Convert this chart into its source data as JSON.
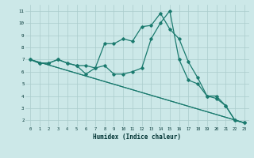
{
  "xlabel": "Humidex (Indice chaleur)",
  "bg_color": "#cce8e8",
  "grid_color": "#aacccc",
  "line_color": "#1a7a6e",
  "x_ticks": [
    0,
    1,
    2,
    3,
    4,
    5,
    6,
    7,
    8,
    9,
    10,
    11,
    12,
    13,
    14,
    15,
    16,
    17,
    18,
    19,
    20,
    21,
    22,
    23
  ],
  "ylim": [
    1.5,
    11.5
  ],
  "xlim": [
    -0.5,
    23.5
  ],
  "series": [
    {
      "x": [
        0,
        1,
        2,
        3,
        4,
        5,
        6,
        7,
        8,
        9,
        10,
        11,
        12,
        13,
        14,
        15,
        16,
        17,
        18,
        19,
        20,
        21,
        22,
        23
      ],
      "y": [
        7.0,
        6.7,
        6.7,
        7.0,
        6.7,
        6.5,
        5.8,
        6.3,
        6.5,
        5.8,
        5.8,
        6.0,
        6.3,
        8.7,
        10.0,
        11.0,
        7.0,
        5.3,
        5.0,
        4.0,
        4.0,
        3.2,
        2.0,
        1.8
      ],
      "marker": "D",
      "markersize": 1.8,
      "linewidth": 0.9
    },
    {
      "x": [
        0,
        1,
        2,
        3,
        4,
        5,
        6,
        7,
        8,
        9,
        10,
        11,
        12,
        13,
        14,
        15,
        16,
        17,
        18,
        19,
        20,
        21,
        22,
        23
      ],
      "y": [
        7.0,
        6.7,
        6.7,
        7.0,
        6.7,
        6.5,
        6.5,
        6.3,
        8.3,
        8.3,
        8.7,
        8.5,
        9.7,
        9.8,
        10.8,
        9.5,
        8.7,
        6.8,
        5.5,
        4.0,
        3.8,
        3.2,
        2.0,
        1.8
      ],
      "marker": "D",
      "markersize": 1.8,
      "linewidth": 0.9
    },
    {
      "x": [
        0,
        23
      ],
      "y": [
        7.0,
        1.8
      ],
      "marker": null,
      "markersize": 0,
      "linewidth": 0.8
    },
    {
      "x": [
        0,
        23
      ],
      "y": [
        7.0,
        1.8
      ],
      "marker": null,
      "markersize": 0,
      "linewidth": 0.8
    }
  ],
  "yticks": [
    2,
    3,
    4,
    5,
    6,
    7,
    8,
    9,
    10,
    11
  ]
}
